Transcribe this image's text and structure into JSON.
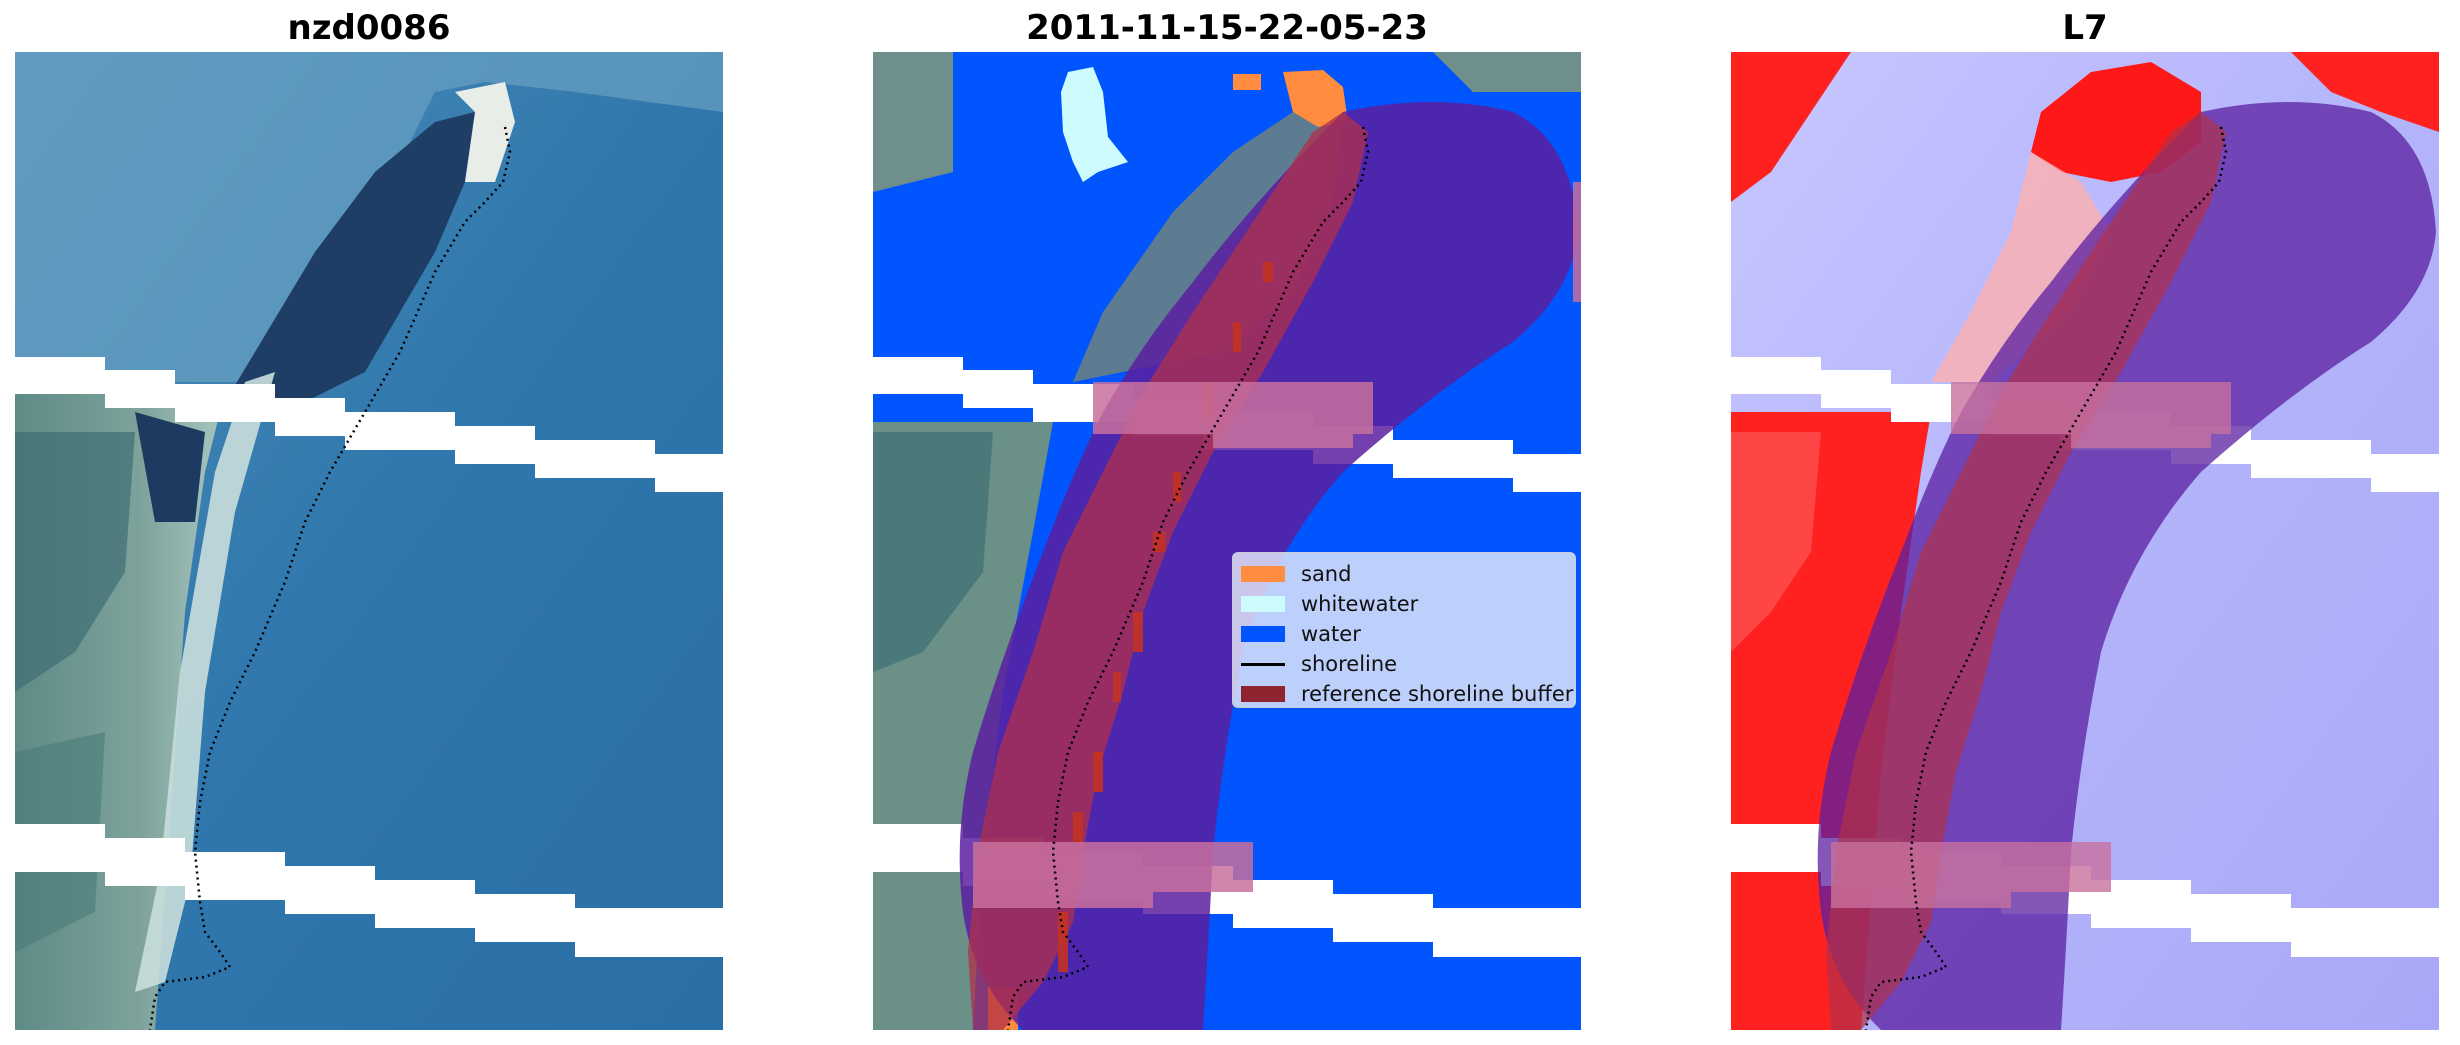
{
  "titles": {
    "site": "nzd0086",
    "date": "2011-11-15-22-05-23",
    "satellite": "L7"
  },
  "legend": {
    "items": [
      {
        "label": "sand",
        "color": "#ff8c3f"
      },
      {
        "label": "whitewater",
        "color": "#ccfcfe"
      },
      {
        "label": "water",
        "color": "#0055ff"
      },
      {
        "label": "shoreline",
        "color": "#000000"
      },
      {
        "label": "reference shoreline buffer",
        "color": "#8f2430"
      }
    ]
  },
  "colors": {
    "buffer_fill": "#b0304a",
    "buffer_band": "#5a1fa0",
    "index_positive": "#ff1010",
    "index_negative": "#b8b8ff",
    "nodata_stripe": "#ffffff"
  }
}
